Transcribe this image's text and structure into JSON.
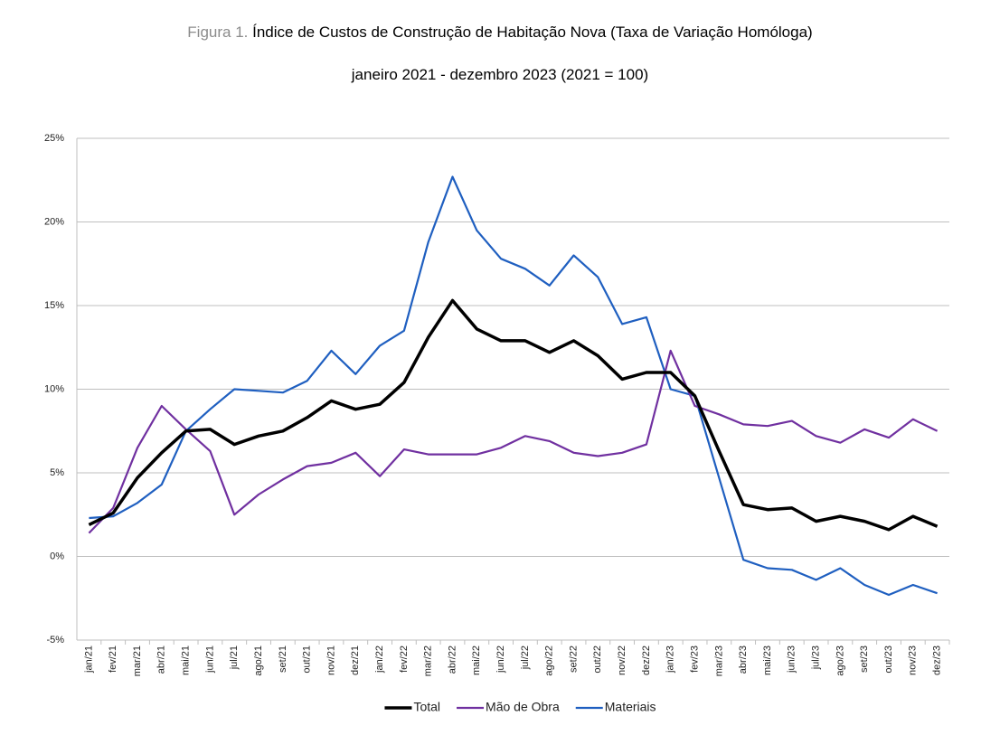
{
  "chart_data": {
    "type": "line",
    "title_prefix": "Figura 1.",
    "title": "Índice de Custos de Construção de Habitação Nova (Taxa de Variação Homóloga)",
    "subtitle": "janeiro 2021 - dezembro 2023 (2021 = 100)",
    "categories": [
      "jan/21",
      "fev/21",
      "mar/21",
      "abr/21",
      "mai/21",
      "jun/21",
      "jul/21",
      "ago/21",
      "set/21",
      "out/21",
      "nov/21",
      "dez/21",
      "jan/22",
      "fev/22",
      "mar/22",
      "abr/22",
      "mai/22",
      "jun/22",
      "jul/22",
      "ago/22",
      "set/22",
      "out/22",
      "nov/22",
      "dez/22",
      "jan/23",
      "fev/23",
      "mar/23",
      "abr/23",
      "mai/23",
      "jun/23",
      "jul/23",
      "ago/23",
      "set/23",
      "out/23",
      "nov/23",
      "dez/23"
    ],
    "series": [
      {
        "name": "Total",
        "color": "#000000",
        "width": 3.5,
        "values": [
          1.9,
          2.6,
          4.7,
          6.2,
          7.5,
          7.6,
          6.7,
          7.2,
          7.5,
          8.3,
          9.3,
          8.8,
          9.1,
          10.4,
          13.1,
          15.3,
          13.6,
          12.9,
          12.9,
          12.2,
          12.9,
          12.0,
          10.6,
          11.0,
          11.0,
          9.6,
          6.3,
          3.1,
          2.8,
          2.9,
          2.1,
          2.4,
          2.1,
          1.6,
          2.4,
          1.8
        ]
      },
      {
        "name": "Mão de Obra",
        "color": "#7030a0",
        "width": 2.2,
        "values": [
          1.4,
          2.9,
          6.5,
          9.0,
          7.6,
          6.3,
          2.5,
          3.7,
          4.6,
          5.4,
          5.6,
          6.2,
          4.8,
          6.4,
          6.1,
          6.1,
          6.1,
          6.5,
          7.2,
          6.9,
          6.2,
          6.0,
          6.2,
          6.7,
          12.3,
          9.0,
          8.5,
          7.9,
          7.8,
          8.1,
          7.2,
          6.8,
          7.6,
          7.1,
          8.2,
          7.5
        ]
      },
      {
        "name": "Materiais",
        "color": "#1f5fc0",
        "width": 2.2,
        "values": [
          2.3,
          2.4,
          3.2,
          4.3,
          7.5,
          8.8,
          10.0,
          9.9,
          9.8,
          10.5,
          12.3,
          10.9,
          12.6,
          13.5,
          18.8,
          22.7,
          19.5,
          17.8,
          17.2,
          16.2,
          18.0,
          16.7,
          13.9,
          14.3,
          10.0,
          9.6,
          4.7,
          -0.2,
          -0.7,
          -0.8,
          -1.4,
          -0.7,
          -1.7,
          -2.3,
          -1.7,
          -2.2
        ]
      }
    ],
    "ylim": [
      -5,
      25
    ],
    "yticks": [
      {
        "value": -5,
        "label": "-5%"
      },
      {
        "value": 0,
        "label": "0%"
      },
      {
        "value": 5,
        "label": "5%"
      },
      {
        "value": 10,
        "label": "10%"
      },
      {
        "value": 15,
        "label": "15%"
      },
      {
        "value": 20,
        "label": "20%"
      },
      {
        "value": 25,
        "label": "25%"
      }
    ],
    "grid": true,
    "legend": "bottom"
  }
}
